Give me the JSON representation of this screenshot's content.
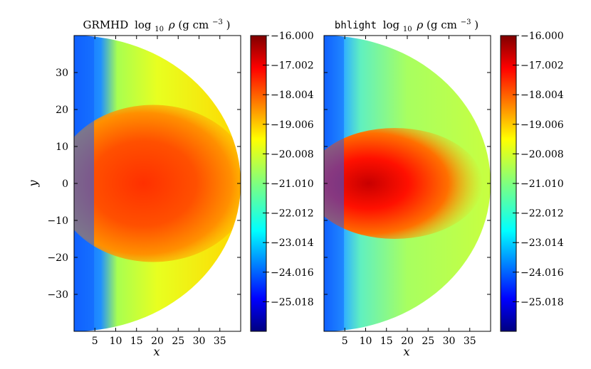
{
  "chart_data": [
    {
      "type": "heatmap",
      "panel": "left",
      "title_prefix": "GRMHD",
      "title_quantity": "log",
      "title_subscript": "10",
      "title_symbol": "ρ",
      "title_units_open": " (g cm",
      "title_units_exp": "−3",
      "title_units_close": ")",
      "xlabel": "x",
      "ylabel": "y",
      "xlim": [
        0,
        40
      ],
      "ylim": [
        -40,
        40
      ],
      "x_ticks": [
        5,
        10,
        15,
        20,
        25,
        30,
        35
      ],
      "x_tick_labels": [
        "5",
        "10",
        "15",
        "20",
        "25",
        "30",
        "35"
      ],
      "y_ticks": [
        30,
        20,
        10,
        0,
        -10,
        -20,
        -30
      ],
      "y_tick_labels": [
        "30",
        "20",
        "10",
        "0",
        "−10",
        "−20",
        "−30"
      ],
      "domain_shape": "half-disk",
      "domain_radius": 40,
      "disk_core_extent_x": 38,
      "disk_core_half_height": 17,
      "colorbar": {
        "vmin": -26.02,
        "vmax": -16.0,
        "ticks": [
          -16.0,
          -17.002,
          -18.004,
          -19.006,
          -20.008,
          -21.01,
          -22.012,
          -23.014,
          -24.016,
          -25.018
        ],
        "tick_labels": [
          "−16.000",
          "−17.002",
          "−18.004",
          "−19.006",
          "−20.008",
          "−21.010",
          "−22.012",
          "−23.014",
          "−24.016",
          "−25.018"
        ],
        "colormap": "jet"
      }
    },
    {
      "type": "heatmap",
      "panel": "right",
      "title_prefix": "bhlight",
      "title_quantity": "log",
      "title_subscript": "10",
      "title_symbol": "ρ",
      "title_units_open": " (g cm",
      "title_units_exp": "−3",
      "title_units_close": ")",
      "xlabel": "x",
      "xlim": [
        0,
        40
      ],
      "ylim": [
        -40,
        40
      ],
      "x_ticks": [
        5,
        10,
        15,
        20,
        25,
        30,
        35
      ],
      "x_tick_labels": [
        "5",
        "10",
        "15",
        "20",
        "25",
        "30",
        "35"
      ],
      "domain_shape": "half-disk",
      "domain_radius": 40,
      "disk_core_extent_x": 34,
      "disk_core_half_height": 12,
      "colorbar": {
        "vmin": -26.02,
        "vmax": -16.0,
        "ticks": [
          -16.0,
          -17.002,
          -18.004,
          -19.006,
          -20.008,
          -21.01,
          -22.012,
          -23.014,
          -24.016,
          -25.018
        ],
        "tick_labels": [
          "−16.000",
          "−17.002",
          "−18.004",
          "−19.006",
          "−20.008",
          "−21.010",
          "−22.012",
          "−23.014",
          "−24.016",
          "−25.018"
        ],
        "colormap": "jet"
      }
    }
  ],
  "colors": {
    "jet_stops": [
      "#00007f",
      "#0000ff",
      "#007fff",
      "#00ffff",
      "#7fff7f",
      "#ffff00",
      "#ff7f00",
      "#ff0000",
      "#7f0000"
    ],
    "background": "#ffffff",
    "axis": "#000000"
  }
}
